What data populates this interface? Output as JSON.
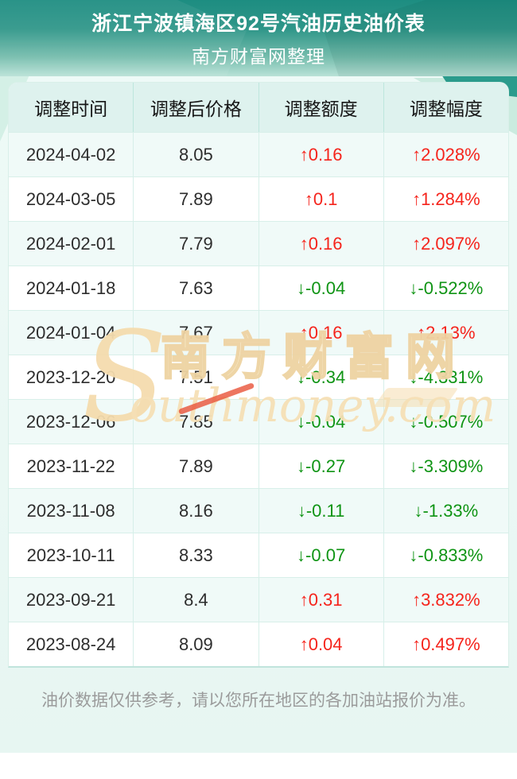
{
  "page": {
    "header": {
      "title": "浙江宁波镇海区92号汽油历史油价表",
      "subtitle": "南方财富网整理"
    },
    "watermark": {
      "s": "S",
      "cn": "南方财富网",
      "en": "outhmoney.com"
    },
    "footer": {
      "note": "油价数据仅供参考，请以您所在地区的各加油站报价为准。"
    }
  },
  "colors": {
    "hero_teal": "#1d8d81",
    "mint_bg": "#e7f6f2",
    "header_row_bg": "#def2ee",
    "alt_row_bg": "#f0faf8",
    "grid_line": "#d6efe9",
    "up_red": "#f5241c",
    "down_green": "#0f9414",
    "watermark_tan": "#f3d9ad",
    "note_gray": "#9b9b9b"
  },
  "chart_data": {
    "type": "table",
    "title": "浙江宁波镇海区92号汽油历史油价表",
    "subtitle": "南方财富网整理",
    "columns": [
      "调整时间",
      "调整后价格",
      "调整额度",
      "调整幅度"
    ],
    "rows": [
      {
        "date": "2024-04-02",
        "price": "8.05",
        "amount": "↑0.16",
        "rate": "↑2.028%",
        "direction": "up"
      },
      {
        "date": "2024-03-05",
        "price": "7.89",
        "amount": "↑0.1",
        "rate": "↑1.284%",
        "direction": "up"
      },
      {
        "date": "2024-02-01",
        "price": "7.79",
        "amount": "↑0.16",
        "rate": "↑2.097%",
        "direction": "up"
      },
      {
        "date": "2024-01-18",
        "price": "7.63",
        "amount": "↓-0.04",
        "rate": "↓-0.522%",
        "direction": "down"
      },
      {
        "date": "2024-01-04",
        "price": "7.67",
        "amount": "↑0.16",
        "rate": "↑2.13%",
        "direction": "up"
      },
      {
        "date": "2023-12-20",
        "price": "7.51",
        "amount": "↓-0.34",
        "rate": "↓-4.331%",
        "direction": "down"
      },
      {
        "date": "2023-12-06",
        "price": "7.85",
        "amount": "↓-0.04",
        "rate": "↓-0.507%",
        "direction": "down"
      },
      {
        "date": "2023-11-22",
        "price": "7.89",
        "amount": "↓-0.27",
        "rate": "↓-3.309%",
        "direction": "down"
      },
      {
        "date": "2023-11-08",
        "price": "8.16",
        "amount": "↓-0.11",
        "rate": "↓-1.33%",
        "direction": "down"
      },
      {
        "date": "2023-10-11",
        "price": "8.33",
        "amount": "↓-0.07",
        "rate": "↓-0.833%",
        "direction": "down"
      },
      {
        "date": "2023-09-21",
        "price": "8.4",
        "amount": "↑0.31",
        "rate": "↑3.832%",
        "direction": "up"
      },
      {
        "date": "2023-08-24",
        "price": "8.09",
        "amount": "↑0.04",
        "rate": "↑0.497%",
        "direction": "up"
      }
    ]
  }
}
